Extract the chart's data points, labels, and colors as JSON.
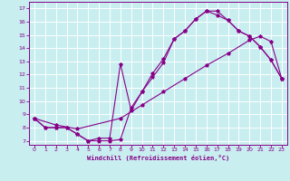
{
  "xlabel": "Windchill (Refroidissement éolien,°C)",
  "bg_color": "#c8eef0",
  "grid_color": "#ffffff",
  "line_color": "#880088",
  "xlim_min": -0.5,
  "xlim_max": 23.5,
  "ylim_min": 6.7,
  "ylim_max": 17.5,
  "xticks": [
    0,
    1,
    2,
    3,
    4,
    5,
    6,
    7,
    8,
    9,
    10,
    11,
    12,
    13,
    14,
    15,
    16,
    17,
    18,
    19,
    20,
    21,
    22,
    23
  ],
  "yticks": [
    7,
    8,
    9,
    10,
    11,
    12,
    13,
    14,
    15,
    16,
    17
  ],
  "curve1_x": [
    0,
    1,
    2,
    3,
    4,
    5,
    6,
    7,
    8,
    9,
    10,
    11,
    12,
    13,
    14,
    15,
    16,
    17,
    18,
    19,
    20,
    21,
    22,
    23
  ],
  "curve1_y": [
    8.7,
    8.0,
    8.0,
    8.0,
    7.5,
    7.0,
    7.0,
    7.0,
    7.1,
    9.5,
    10.7,
    12.1,
    13.2,
    14.7,
    15.3,
    16.2,
    16.8,
    16.8,
    16.1,
    15.3,
    14.9,
    14.1,
    13.1,
    11.7
  ],
  "curve2_x": [
    0,
    1,
    2,
    3,
    4,
    5,
    6,
    7,
    8,
    9,
    10,
    11,
    12,
    13,
    14,
    15,
    16,
    17,
    18,
    19,
    20,
    21,
    22,
    23
  ],
  "curve2_y": [
    8.7,
    8.0,
    8.0,
    8.0,
    7.5,
    7.0,
    7.2,
    7.2,
    12.8,
    9.3,
    10.7,
    11.8,
    12.9,
    14.7,
    15.3,
    16.2,
    16.8,
    16.5,
    16.1,
    15.3,
    14.9,
    14.1,
    13.1,
    11.7
  ],
  "curve3_x": [
    0,
    2,
    4,
    8,
    10,
    12,
    14,
    16,
    18,
    20,
    21,
    22,
    23
  ],
  "curve3_y": [
    8.7,
    8.2,
    7.9,
    8.7,
    9.7,
    10.7,
    11.7,
    12.7,
    13.6,
    14.6,
    14.9,
    14.5,
    11.7
  ]
}
